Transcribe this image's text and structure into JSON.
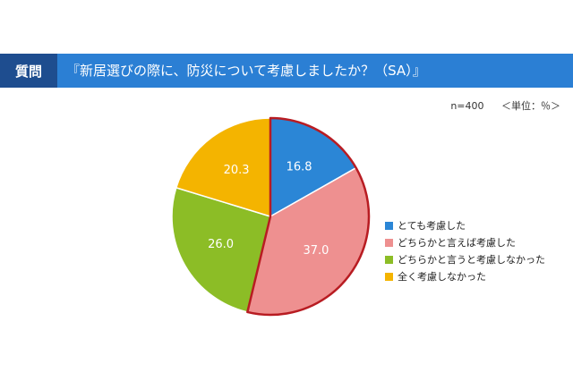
{
  "header": {
    "question_label": "質問",
    "question_text": "『新居選びの際に、防災について考慮しましたか？（SA）』"
  },
  "meta": {
    "sample": "n=400",
    "unit": "＜単位：％＞"
  },
  "colors": {
    "header_bar": "#2b7fd4",
    "question_label_bg": "#1e4d8f",
    "highlight_border": "#b81c22"
  },
  "chart_data": {
    "type": "pie",
    "title": "",
    "categories": [
      "とても考慮した",
      "どちらかと言えば考慮した",
      "どちらかと言うと考慮しなかった",
      "全く考慮しなかった"
    ],
    "values": [
      16.8,
      37.0,
      26.0,
      20.3
    ],
    "labels": [
      "16.8",
      "37.0",
      "26.0",
      "20.3"
    ],
    "colors": [
      "#2b86d6",
      "#ee9090",
      "#8cbd26",
      "#f4b400"
    ],
    "highlighted": [
      "とても考慮した",
      "どちらかと言えば考慮した"
    ],
    "legend_position": "right"
  }
}
